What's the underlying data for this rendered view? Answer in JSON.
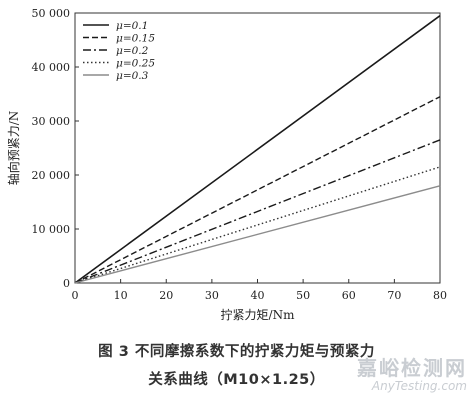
{
  "chart_data": {
    "type": "line",
    "xlabel": "拧紧力矩/Nm",
    "ylabel": "轴向预紧力/N",
    "xlim": [
      0,
      80
    ],
    "ylim": [
      0,
      50000
    ],
    "xticks": [
      "0",
      "10",
      "20",
      "30",
      "40",
      "50",
      "60",
      "70",
      "80"
    ],
    "yticks": [
      "0",
      "10 000",
      "20 000",
      "30 000",
      "40 000",
      "50 000"
    ],
    "x": [
      0,
      80
    ],
    "series": [
      {
        "name": "μ=0.1",
        "values": [
          0,
          49500
        ],
        "dash": "solid",
        "color": "#1a1a1a"
      },
      {
        "name": "μ=0.15",
        "values": [
          0,
          34500
        ],
        "dash": "dashed",
        "color": "#1a1a1a"
      },
      {
        "name": "μ=0.2",
        "values": [
          0,
          26500
        ],
        "dash": "dashdot",
        "color": "#1a1a1a"
      },
      {
        "name": "μ=0.25",
        "values": [
          0,
          21500
        ],
        "dash": "dotted",
        "color": "#333333"
      },
      {
        "name": "μ=0.3",
        "values": [
          0,
          18000
        ],
        "dash": "solid",
        "color": "#8c8c8c"
      }
    ],
    "legend": "top-left",
    "grid": false
  },
  "caption": {
    "line1": "图 3   不同摩擦系数下的拧紧力矩与预紧力",
    "line2": "关系曲线（M10×1.25）"
  },
  "watermark": {
    "cn": "嘉峪检测网",
    "en": "AnyTesting.com"
  }
}
